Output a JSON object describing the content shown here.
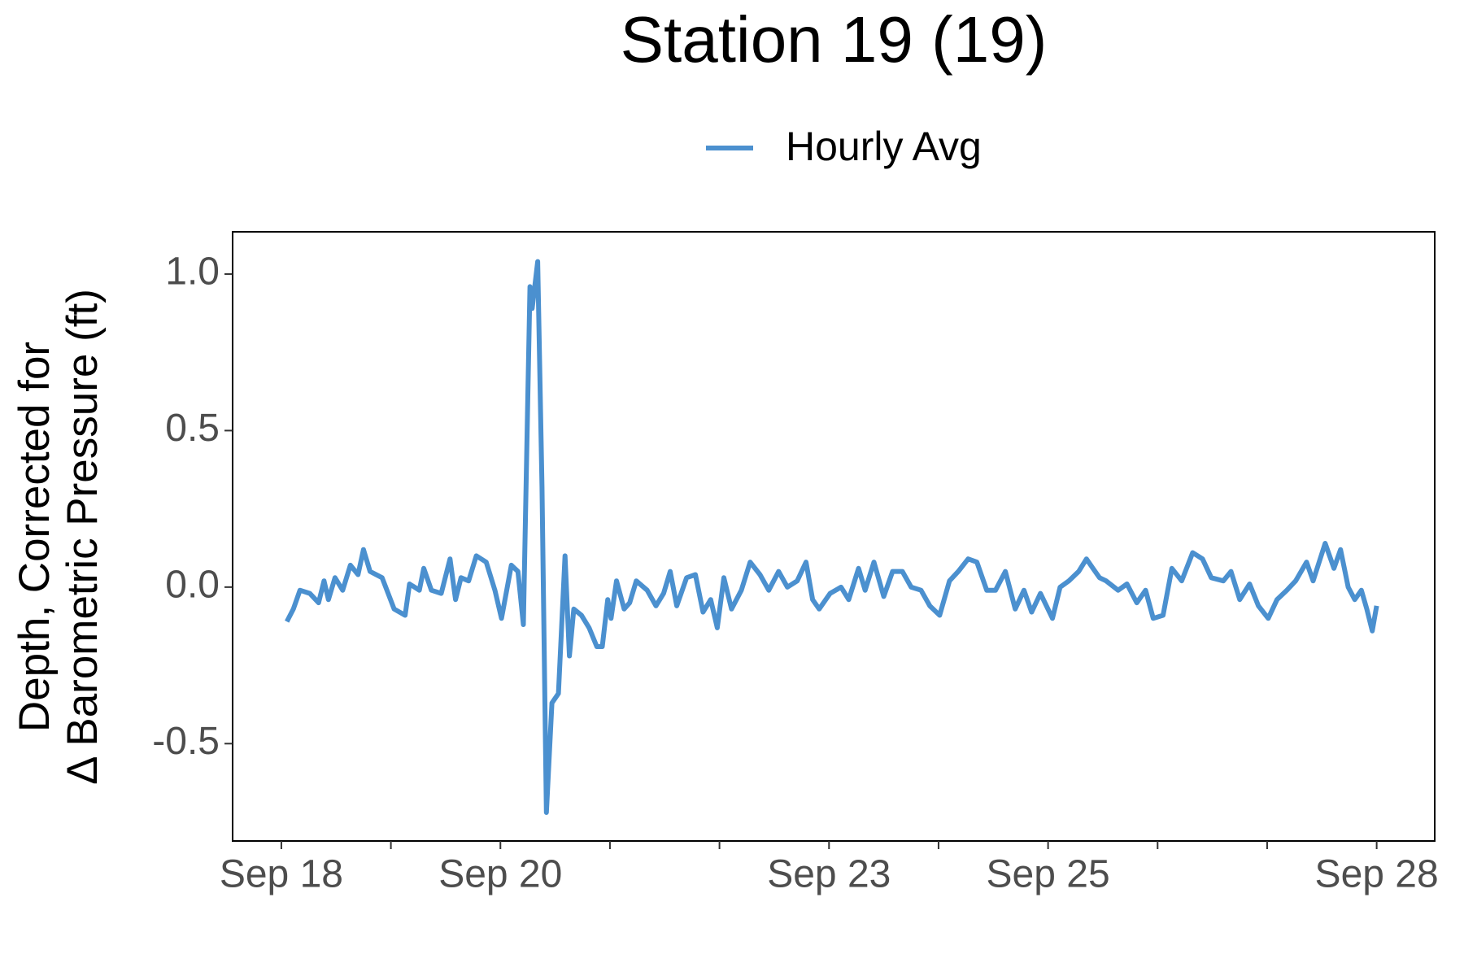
{
  "chart_data": {
    "type": "line",
    "title": "Station 19 (19)",
    "y_label": [
      "Depth, Corrected for",
      "Δ Barometric Pressure (ft)"
    ],
    "x": [
      18.05,
      18.11,
      18.17,
      18.26,
      18.34,
      18.39,
      18.43,
      18.49,
      18.56,
      18.63,
      18.7,
      18.75,
      18.81,
      18.92,
      19.03,
      19.13,
      19.17,
      19.26,
      19.3,
      19.37,
      19.46,
      19.54,
      19.59,
      19.64,
      19.71,
      19.78,
      19.87,
      19.95,
      20.01,
      20.1,
      20.16,
      20.21,
      20.27,
      20.29,
      20.34,
      20.38,
      20.42,
      20.47,
      20.53,
      20.59,
      20.63,
      20.67,
      20.74,
      20.81,
      20.88,
      20.93,
      20.98,
      21.01,
      21.06,
      21.13,
      21.18,
      21.24,
      21.34,
      21.42,
      21.49,
      21.55,
      21.61,
      21.7,
      21.78,
      21.85,
      21.92,
      21.98,
      22.04,
      22.11,
      22.2,
      22.28,
      22.37,
      22.45,
      22.54,
      22.62,
      22.71,
      22.79,
      22.85,
      22.91,
      23.01,
      23.11,
      23.18,
      23.27,
      23.33,
      23.41,
      23.5,
      23.58,
      23.67,
      23.75,
      23.84,
      23.92,
      24.01,
      24.1,
      24.18,
      24.27,
      24.35,
      24.44,
      24.52,
      24.61,
      24.7,
      24.78,
      24.85,
      24.93,
      25.04,
      25.11,
      25.19,
      25.28,
      25.35,
      25.41,
      25.47,
      25.53,
      25.64,
      25.72,
      25.81,
      25.89,
      25.96,
      26.05,
      26.13,
      26.22,
      26.32,
      26.41,
      26.49,
      26.6,
      26.67,
      26.75,
      26.84,
      26.92,
      27.01,
      27.09,
      27.18,
      27.26,
      27.36,
      27.42,
      27.53,
      27.61,
      27.67,
      27.74,
      27.8,
      27.86,
      27.91,
      27.96,
      28.0
    ],
    "series": [
      {
        "name": "Hourly Avg",
        "color": "#4b90cf",
        "values": [
          -0.11,
          -0.07,
          -0.01,
          -0.02,
          -0.05,
          0.02,
          -0.04,
          0.03,
          -0.01,
          0.07,
          0.04,
          0.12,
          0.05,
          0.03,
          -0.07,
          -0.09,
          0.01,
          -0.01,
          0.06,
          -0.01,
          -0.02,
          0.09,
          -0.04,
          0.03,
          0.02,
          0.1,
          0.08,
          -0.01,
          -0.1,
          0.07,
          0.05,
          -0.12,
          0.96,
          0.89,
          1.04,
          0.32,
          -0.72,
          -0.37,
          -0.34,
          0.1,
          -0.22,
          -0.07,
          -0.09,
          -0.13,
          -0.19,
          -0.19,
          -0.04,
          -0.1,
          0.02,
          -0.07,
          -0.05,
          0.02,
          -0.01,
          -0.06,
          -0.02,
          0.05,
          -0.06,
          0.03,
          0.04,
          -0.08,
          -0.04,
          -0.13,
          0.03,
          -0.07,
          -0.01,
          0.08,
          0.04,
          -0.01,
          0.05,
          0.0,
          0.02,
          0.08,
          -0.04,
          -0.07,
          -0.02,
          0.0,
          -0.04,
          0.06,
          -0.01,
          0.08,
          -0.03,
          0.05,
          0.05,
          0.0,
          -0.01,
          -0.06,
          -0.09,
          0.02,
          0.05,
          0.09,
          0.08,
          -0.01,
          -0.01,
          0.05,
          -0.07,
          -0.01,
          -0.08,
          -0.02,
          -0.1,
          0.0,
          0.02,
          0.05,
          0.09,
          0.06,
          0.03,
          0.02,
          -0.01,
          0.01,
          -0.05,
          -0.01,
          -0.1,
          -0.09,
          0.06,
          0.02,
          0.11,
          0.09,
          0.03,
          0.02,
          0.05,
          -0.04,
          0.01,
          -0.06,
          -0.1,
          -0.04,
          -0.01,
          0.02,
          0.08,
          0.02,
          0.14,
          0.06,
          0.12,
          0.0,
          -0.04,
          -0.01,
          -0.07,
          -0.14,
          -0.06
        ]
      }
    ],
    "xlim": [
      17.555,
      28.53
    ],
    "xticks": [
      {
        "value": 18,
        "label": "Sep 18"
      },
      {
        "value": 20,
        "label": "Sep 20"
      },
      {
        "value": 23,
        "label": "Sep 23"
      },
      {
        "value": 25,
        "label": "Sep 25"
      },
      {
        "value": 28,
        "label": "Sep 28"
      }
    ],
    "minor_xticks": [
      19,
      21,
      22,
      24,
      26,
      27
    ],
    "ylim": [
      -0.811,
      1.135
    ],
    "yticks": [
      -0.5,
      {
        "value": 0,
        "label": "0.0"
      },
      0.5,
      {
        "value": 1,
        "label": "1.0"
      }
    ],
    "legend": "top",
    "grid": false
  }
}
